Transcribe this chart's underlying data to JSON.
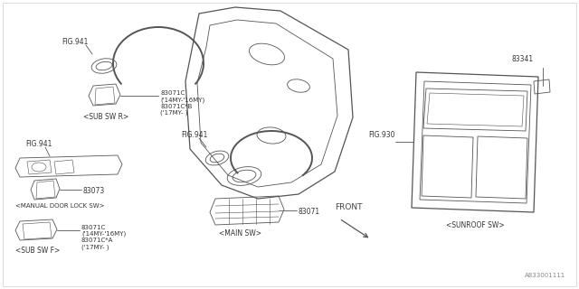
{
  "bg_color": "#ffffff",
  "line_color": "#555555",
  "border_color": "#cccccc",
  "diagram_id": "A833001111",
  "labels": {
    "sub_sw_r": "<SUB SW R>",
    "main_sw": "<MAIN SW>",
    "sub_sw_f": "<SUB SW F>",
    "manual_door_lock": "<MANUAL DOOR LOCK SW>",
    "sunroof_sw": "<SUNROOF SW>",
    "front": "FRONT",
    "fig941_1": "FIG.941",
    "fig941_2": "FIG.941",
    "fig941_3": "FIG.941",
    "fig930": "FIG.930",
    "part_83071c_top": "83071C\n('14MY-'16MY)\n83071C*B\n('17MY- )",
    "part_83071": "83071",
    "part_83073": "83073",
    "part_83071c_bot": "83071C\n('14MY-'16MY)\n83071C*A\n('17MY- )",
    "part_83341": "83341"
  },
  "fs_tiny": 5.0,
  "fs_small": 5.5,
  "fs_med": 6.5,
  "lw_thin": 0.6,
  "lw_med": 0.9,
  "lw_thick": 1.4
}
